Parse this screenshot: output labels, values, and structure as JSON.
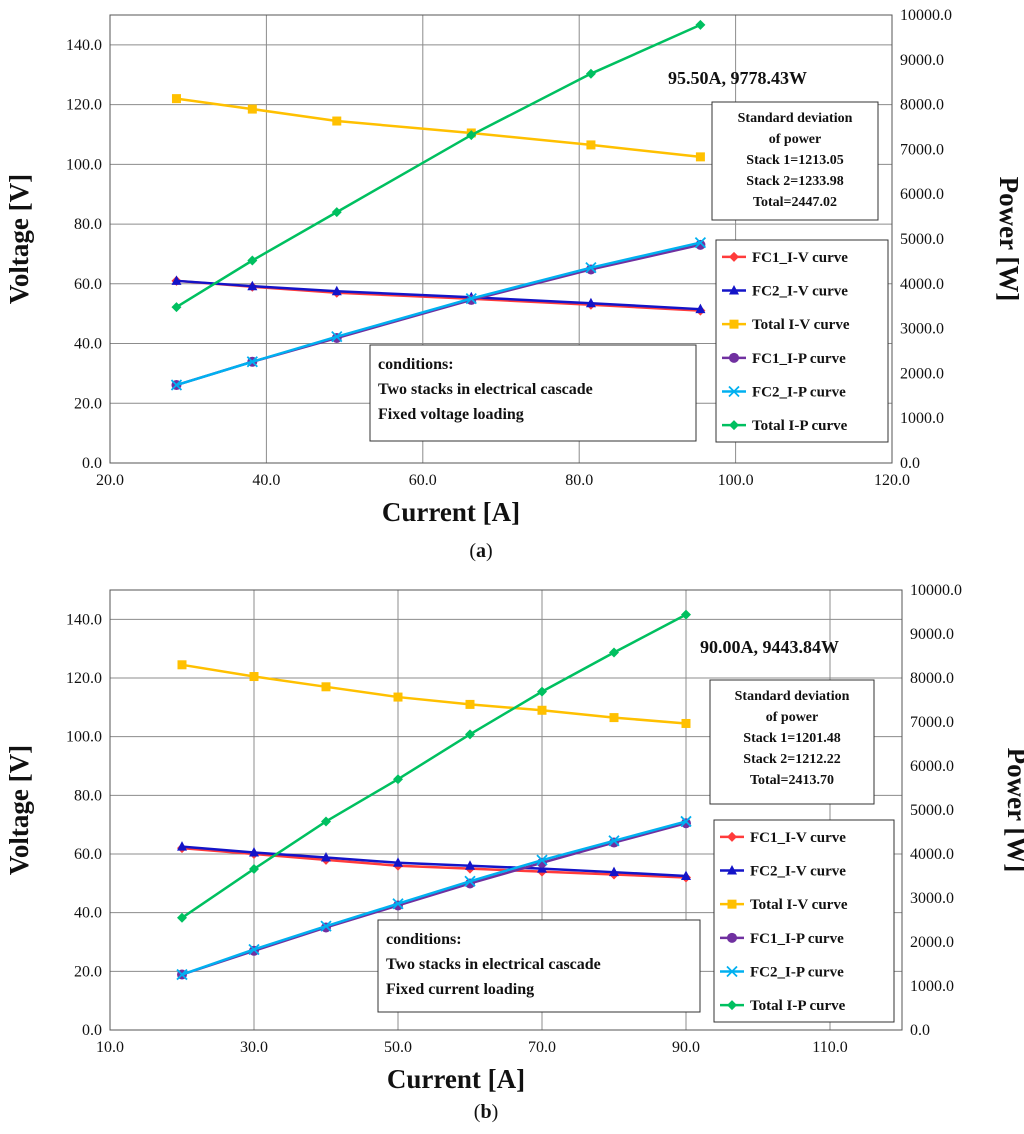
{
  "chart_data": [
    {
      "type": "line",
      "panel_label": "a",
      "xlabel": "Current [A]",
      "ylabel": "Voltage [V]",
      "y2label": "Power [W]",
      "xlim": [
        20,
        120
      ],
      "ylim": [
        0,
        150
      ],
      "y2lim": [
        0,
        10000
      ],
      "x_ticks": [
        "20.0",
        "40.0",
        "60.0",
        "80.0",
        "100.0",
        "120.0"
      ],
      "y_ticks": [
        "0.0",
        "20.0",
        "40.0",
        "60.0",
        "80.0",
        "100.0",
        "120.0",
        "140.0"
      ],
      "y2_ticks": [
        "0.0",
        "1000.0",
        "2000.0",
        "3000.0",
        "4000.0",
        "5000.0",
        "6000.0",
        "7000.0",
        "8000.0",
        "9000.0",
        "10000.0"
      ],
      "grid": true,
      "legend_position": "lower-right",
      "x": [
        28.5,
        38.2,
        49.0,
        66.2,
        81.5,
        95.5
      ],
      "series": [
        {
          "name": "FC1_I-V curve",
          "axis": "left",
          "color": "#ff3b3b",
          "marker": "diamond",
          "values": [
            61.0,
            59.0,
            57.0,
            55.0,
            53.0,
            51.0
          ]
        },
        {
          "name": "FC2_I-V curve",
          "axis": "left",
          "color": "#1414c8",
          "marker": "triangle",
          "values": [
            61.0,
            59.2,
            57.5,
            55.5,
            53.5,
            51.5
          ]
        },
        {
          "name": "Total I-V curve",
          "axis": "left",
          "color": "#ffc000",
          "marker": "square",
          "values": [
            122.0,
            118.5,
            114.5,
            110.5,
            106.5,
            102.5
          ]
        },
        {
          "name": "FC1_I-P curve",
          "axis": "right",
          "color": "#7030a0",
          "marker": "circle",
          "values": [
            1740,
            2260,
            2790,
            3640,
            4320,
            4870
          ]
        },
        {
          "name": "FC2_I-P curve",
          "axis": "right",
          "color": "#00b0f0",
          "marker": "x",
          "values": [
            1740,
            2260,
            2820,
            3670,
            4360,
            4920
          ]
        },
        {
          "name": "Total I-P curve",
          "axis": "right",
          "color": "#00c060",
          "marker": "diamond",
          "values": [
            3480,
            4520,
            5600,
            7320,
            8690,
            9780
          ]
        }
      ],
      "annotations": {
        "callout": "95.50A, 9778.43W",
        "stats": [
          "Standard deviation",
          "of power",
          "Stack 1=1213.05",
          "Stack 2=1233.98",
          "Total=2447.02"
        ],
        "conditions": [
          "conditions:",
          "Two stacks in electrical cascade",
          "Fixed voltage loading"
        ]
      }
    },
    {
      "type": "line",
      "panel_label": "b",
      "xlabel": "Current [A]",
      "ylabel": "Voltage [V]",
      "y2label": "Power [W]",
      "xlim": [
        10,
        120
      ],
      "ylim": [
        0,
        150
      ],
      "y2lim": [
        0,
        10000
      ],
      "x_ticks": [
        "10.0",
        "30.0",
        "50.0",
        "70.0",
        "90.0",
        "110.0"
      ],
      "y_ticks": [
        "0.0",
        "20.0",
        "40.0",
        "60.0",
        "80.0",
        "100.0",
        "120.0",
        "140.0"
      ],
      "y2_ticks": [
        "0.0",
        "1000.0",
        "2000.0",
        "3000.0",
        "4000.0",
        "5000.0",
        "6000.0",
        "7000.0",
        "8000.0",
        "9000.0",
        "10000.0"
      ],
      "grid": true,
      "legend_position": "lower-right",
      "x": [
        20,
        30,
        40,
        50,
        60,
        70,
        80,
        90
      ],
      "series": [
        {
          "name": "FC1_I-V curve",
          "axis": "left",
          "color": "#ff3b3b",
          "marker": "diamond",
          "values": [
            62.0,
            60.0,
            58.0,
            56.0,
            55.0,
            54.0,
            53.0,
            52.0
          ]
        },
        {
          "name": "FC2_I-V curve",
          "axis": "left",
          "color": "#1414c8",
          "marker": "triangle",
          "values": [
            62.5,
            60.5,
            58.8,
            57.0,
            56.0,
            55.0,
            53.8,
            52.5
          ]
        },
        {
          "name": "Total I-V curve",
          "axis": "left",
          "color": "#ffc000",
          "marker": "square",
          "values": [
            124.5,
            120.5,
            117.0,
            113.5,
            111.0,
            109.0,
            106.5,
            104.5
          ]
        },
        {
          "name": "FC1_I-P curve",
          "axis": "right",
          "color": "#7030a0",
          "marker": "circle",
          "values": [
            1260,
            1800,
            2330,
            2830,
            3330,
            3800,
            4260,
            4700
          ]
        },
        {
          "name": "FC2_I-P curve",
          "axis": "right",
          "color": "#00b0f0",
          "marker": "x",
          "values": [
            1260,
            1830,
            2360,
            2870,
            3380,
            3860,
            4300,
            4740
          ]
        },
        {
          "name": "Total I-P curve",
          "axis": "right",
          "color": "#00c060",
          "marker": "diamond",
          "values": [
            2550,
            3660,
            4740,
            5700,
            6720,
            7690,
            8580,
            9440
          ]
        }
      ],
      "annotations": {
        "callout": "90.00A, 9443.84W",
        "stats": [
          "Standard deviation",
          "of power",
          "Stack 1=1201.48",
          "Stack 2=1212.22",
          "Total=2413.70"
        ],
        "conditions": [
          "conditions:",
          "Two stacks in electrical cascade",
          "Fixed current loading"
        ]
      }
    }
  ]
}
